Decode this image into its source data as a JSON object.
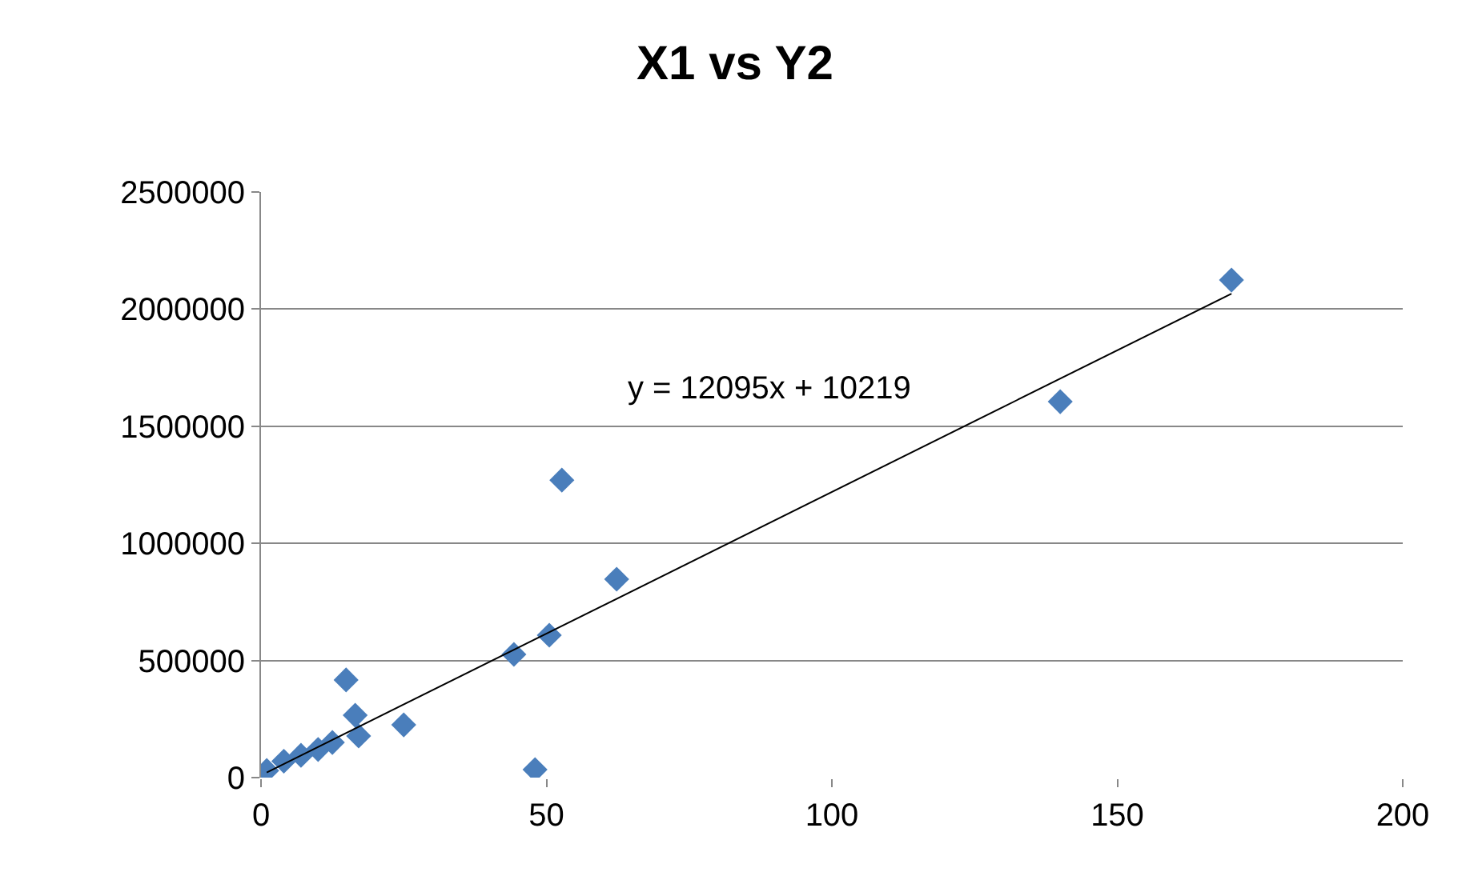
{
  "chart_data": {
    "type": "scatter",
    "title": "X1 vs Y2",
    "marker": "diamond",
    "grid": "y",
    "xlim": [
      0,
      200
    ],
    "xticks": [
      0,
      50,
      100,
      150,
      200
    ],
    "ylim": [
      0,
      2500000
    ],
    "yticks": [
      0,
      500000,
      1000000,
      1500000,
      2000000,
      2500000
    ],
    "series": [
      {
        "color": "#4a7ebb",
        "x": [
          1,
          4,
          7,
          10,
          12.5,
          14.9,
          16.5,
          17.1,
          25,
          44.3,
          48,
          50.5,
          52.7,
          62.3,
          140,
          170
        ],
        "values": [
          30000,
          70000,
          95000,
          120000,
          150000,
          417000,
          266000,
          178000,
          225000,
          526000,
          34000,
          608000,
          1270000,
          847000,
          1605000,
          2124000
        ]
      },
      {
        "type": "line",
        "marker": "none",
        "color": "#000000",
        "x": [
          1,
          170
        ],
        "values": [
          22000,
          2066000
        ]
      }
    ],
    "annotations": [
      "y = 12095x + 10219"
    ]
  }
}
